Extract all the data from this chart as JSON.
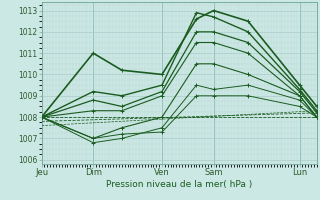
{
  "xlabel": "Pression niveau de la mer( hPa )",
  "ylim": [
    1005.8,
    1013.4
  ],
  "xlim": [
    0,
    96
  ],
  "yticks": [
    1006,
    1007,
    1008,
    1009,
    1010,
    1011,
    1012,
    1013
  ],
  "xtick_positions": [
    0,
    18,
    42,
    60,
    90
  ],
  "xtick_labels": [
    "Jeu",
    "Dim",
    "Ven",
    "Sam",
    "Lun"
  ],
  "vline_positions": [
    0,
    18,
    42,
    60,
    90
  ],
  "bg_color": "#cce8e4",
  "grid_major_color": "#aaccca",
  "grid_minor_color": "#bcd8d4",
  "line_color": "#1a5c20",
  "lines": [
    {
      "x": [
        0,
        18,
        28,
        42,
        54,
        60,
        72,
        90,
        96
      ],
      "y": [
        1008,
        1011.0,
        1010.2,
        1010.0,
        1012.6,
        1013.0,
        1012.5,
        1009.5,
        1008.5
      ],
      "lw": 1.2,
      "ls": "-",
      "marker": true
    },
    {
      "x": [
        0,
        18,
        28,
        42,
        54,
        60,
        72,
        90,
        96
      ],
      "y": [
        1008,
        1009.2,
        1009.0,
        1009.5,
        1012.9,
        1012.7,
        1012.0,
        1009.3,
        1008.3
      ],
      "lw": 1.0,
      "ls": "-",
      "marker": true
    },
    {
      "x": [
        0,
        18,
        28,
        42,
        54,
        60,
        72,
        90,
        96
      ],
      "y": [
        1008,
        1008.8,
        1008.5,
        1009.2,
        1012.0,
        1012.0,
        1011.5,
        1009.2,
        1008.2
      ],
      "lw": 0.9,
      "ls": "-",
      "marker": true
    },
    {
      "x": [
        0,
        18,
        28,
        42,
        54,
        60,
        72,
        90,
        96
      ],
      "y": [
        1008,
        1008.3,
        1008.3,
        1009.0,
        1011.5,
        1011.5,
        1011.0,
        1009.0,
        1008.0
      ],
      "lw": 0.8,
      "ls": "-",
      "marker": true
    },
    {
      "x": [
        0,
        18,
        28,
        42,
        54,
        60,
        72,
        90,
        96
      ],
      "y": [
        1008,
        1007.0,
        1007.5,
        1008.0,
        1010.5,
        1010.5,
        1010.0,
        1009.0,
        1008.0
      ],
      "lw": 0.8,
      "ls": "-",
      "marker": true
    },
    {
      "x": [
        0,
        18,
        28,
        42,
        54,
        60,
        72,
        90,
        96
      ],
      "y": [
        1008,
        1006.8,
        1007.0,
        1007.5,
        1009.5,
        1009.3,
        1009.5,
        1008.8,
        1008.0
      ],
      "lw": 0.7,
      "ls": "-",
      "marker": true
    },
    {
      "x": [
        0,
        18,
        28,
        42,
        54,
        60,
        72,
        90,
        96
      ],
      "y": [
        1008,
        1007.0,
        1007.2,
        1007.3,
        1009.0,
        1009.0,
        1009.0,
        1008.5,
        1008.0
      ],
      "lw": 0.7,
      "ls": "-",
      "marker": true
    },
    {
      "x": [
        0,
        96
      ],
      "y": [
        1008,
        1008.0
      ],
      "lw": 0.6,
      "ls": "--",
      "marker": false
    },
    {
      "x": [
        0,
        96
      ],
      "y": [
        1007.8,
        1008.2
      ],
      "lw": 0.6,
      "ls": "--",
      "marker": false
    },
    {
      "x": [
        0,
        96
      ],
      "y": [
        1007.6,
        1008.3
      ],
      "lw": 0.5,
      "ls": "--",
      "marker": false
    }
  ],
  "figsize": [
    3.2,
    2.0
  ],
  "dpi": 100
}
